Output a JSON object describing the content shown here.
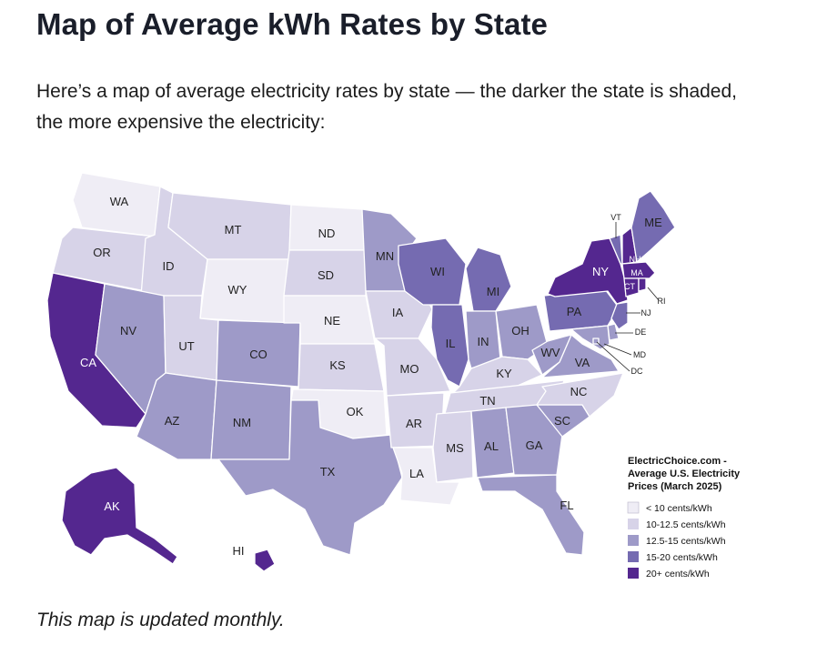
{
  "heading": "Map of Average kWh Rates by State",
  "intro": "Here’s a map of average electricity rates by state — the darker the state is shaded, the more expensive the electricity:",
  "footnote": "This map is updated monthly.",
  "legend": {
    "title_lines": [
      "ElectricChoice.com -",
      "Average U.S. Electricity",
      "Prices (March 2025)"
    ],
    "items": [
      {
        "label": "< 10 cents/kWh",
        "color": "#efedf5"
      },
      {
        "label": "10-12.5 cents/kWh",
        "color": "#d7d3e8"
      },
      {
        "label": "12.5-15 cents/kWh",
        "color": "#9e9ac8"
      },
      {
        "label": "15-20 cents/kWh",
        "color": "#756bb1"
      },
      {
        "label": "20+ cents/kWh",
        "color": "#54278f"
      }
    ]
  },
  "states": [
    {
      "code": "WA",
      "tier": 0
    },
    {
      "code": "OR",
      "tier": 1
    },
    {
      "code": "CA",
      "tier": 4
    },
    {
      "code": "ID",
      "tier": 1
    },
    {
      "code": "NV",
      "tier": 2
    },
    {
      "code": "MT",
      "tier": 1
    },
    {
      "code": "WY",
      "tier": 0
    },
    {
      "code": "UT",
      "tier": 1
    },
    {
      "code": "AZ",
      "tier": 2
    },
    {
      "code": "CO",
      "tier": 2
    },
    {
      "code": "NM",
      "tier": 2
    },
    {
      "code": "ND",
      "tier": 0
    },
    {
      "code": "SD",
      "tier": 1
    },
    {
      "code": "NE",
      "tier": 0
    },
    {
      "code": "KS",
      "tier": 1
    },
    {
      "code": "OK",
      "tier": 0
    },
    {
      "code": "TX",
      "tier": 2
    },
    {
      "code": "MN",
      "tier": 2
    },
    {
      "code": "IA",
      "tier": 1
    },
    {
      "code": "MO",
      "tier": 1
    },
    {
      "code": "AR",
      "tier": 1
    },
    {
      "code": "LA",
      "tier": 0
    },
    {
      "code": "WI",
      "tier": 3
    },
    {
      "code": "IL",
      "tier": 3
    },
    {
      "code": "MI",
      "tier": 3
    },
    {
      "code": "IN",
      "tier": 2
    },
    {
      "code": "OH",
      "tier": 2
    },
    {
      "code": "KY",
      "tier": 1
    },
    {
      "code": "TN",
      "tier": 1
    },
    {
      "code": "MS",
      "tier": 1
    },
    {
      "code": "AL",
      "tier": 2
    },
    {
      "code": "GA",
      "tier": 2
    },
    {
      "code": "FL",
      "tier": 2
    },
    {
      "code": "SC",
      "tier": 2
    },
    {
      "code": "NC",
      "tier": 1
    },
    {
      "code": "VA",
      "tier": 2
    },
    {
      "code": "WV",
      "tier": 2
    },
    {
      "code": "PA",
      "tier": 3
    },
    {
      "code": "NY",
      "tier": 4
    },
    {
      "code": "VT",
      "tier": 3
    },
    {
      "code": "NH",
      "tier": 4
    },
    {
      "code": "ME",
      "tier": 3
    },
    {
      "code": "MA",
      "tier": 4
    },
    {
      "code": "RI",
      "tier": 4
    },
    {
      "code": "CT",
      "tier": 4
    },
    {
      "code": "NJ",
      "tier": 3
    },
    {
      "code": "DE",
      "tier": 2
    },
    {
      "code": "MD",
      "tier": 2
    },
    {
      "code": "DC",
      "tier": 2
    },
    {
      "code": "AK",
      "tier": 4
    },
    {
      "code": "HI",
      "tier": 4
    }
  ]
}
